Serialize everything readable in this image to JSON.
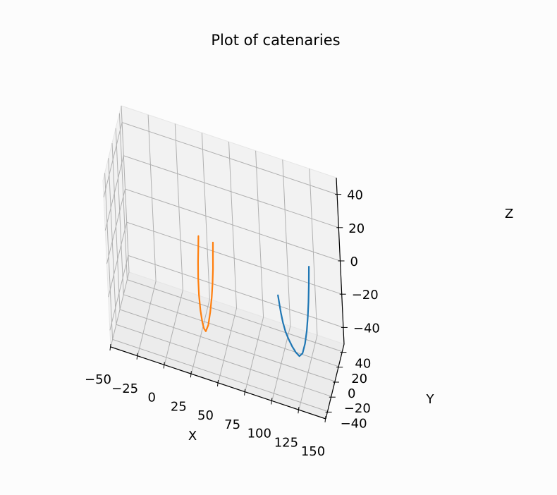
{
  "chart_data": {
    "type": "line",
    "projection": "3d",
    "title": "Plot of catenaries",
    "xlabel": "X",
    "ylabel": "Y",
    "zlabel": "Z",
    "xlim": [
      -50,
      150
    ],
    "ylim": [
      -50,
      50
    ],
    "zlim": [
      -50,
      50
    ],
    "xticks": [
      "−50",
      "−25",
      "0",
      "25",
      "50",
      "75",
      "100",
      "125",
      "150"
    ],
    "yticks": [
      "−40",
      "−20",
      "0",
      "20",
      "40"
    ],
    "zticks": [
      "−40",
      "−20",
      "0",
      "20",
      "40"
    ],
    "grid": true,
    "series": [
      {
        "color": "#1f77b4",
        "x": [
          100,
          100.7,
          101.6,
          102.8,
          104.5,
          106.7,
          109.3,
          111.9,
          114.6,
          117.1,
          119.3,
          121,
          122.2,
          123.1,
          123.8,
          124.3
        ],
        "y": [
          0,
          0.8,
          1.8,
          3.1,
          4.8,
          6.9,
          9.3,
          11.8,
          14.6,
          17.4,
          20.1,
          22.5,
          24.6,
          26.4,
          28.3,
          30
        ],
        "z": [
          -9,
          -14,
          -20,
          -26,
          -32,
          -37,
          -42,
          -46,
          -49,
          -48,
          -43,
          -36,
          -28,
          -20,
          -10,
          0
        ]
      },
      {
        "color": "#ff7f0e",
        "x": [
          25,
          24.4,
          23.9,
          23.6,
          24.1,
          25.3,
          26.9,
          28.4,
          30.1,
          32.6,
          34.9,
          36.8,
          38.2,
          39.3,
          40.1,
          40.9
        ],
        "y": [
          12,
          11.3,
          10.1,
          8.6,
          6.1,
          3.9,
          2.3,
          1.2,
          0.6,
          1.1,
          2,
          2.5,
          2.7,
          2.3,
          1.4,
          0
        ],
        "z": [
          5,
          -3,
          -10,
          -19,
          -28,
          -36,
          -42,
          -45,
          -46,
          -42,
          -34,
          -25,
          -16,
          -7,
          2,
          10
        ]
      }
    ]
  }
}
